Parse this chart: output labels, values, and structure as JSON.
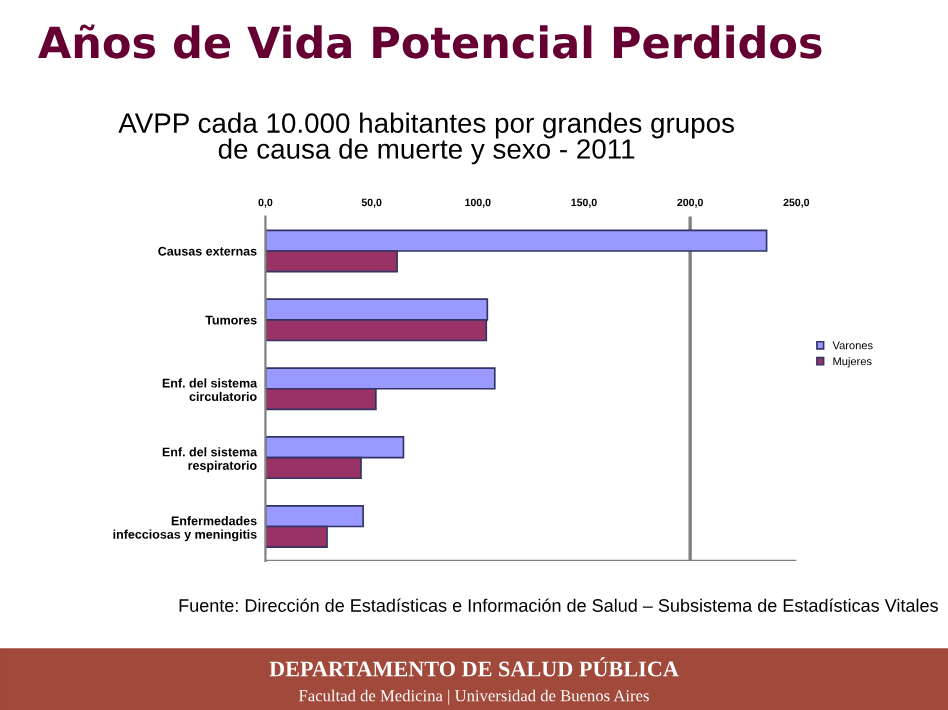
{
  "chart_data": {
    "type": "bar",
    "orientation": "horizontal",
    "title": "Años de Vida Potencial Perdidos",
    "subtitle": "AVPP cada 10.000 habitantes por grandes grupos\nde causa de muerte y sexo - 2011",
    "categories": [
      "Causas externas",
      "Tumores",
      "Enf. del sistema\ncirculatorio",
      "Enf. del sistema\nrespiratorio",
      "Enfermedades\ninfecciosas y meningitis"
    ],
    "series": [
      {
        "name": "Varones",
        "color": "#9999ff",
        "values": [
          236,
          104.5,
          108,
          65,
          46
        ]
      },
      {
        "name": "Mujeres",
        "color": "#993366",
        "values": [
          62,
          104,
          52,
          45,
          29
        ]
      }
    ],
    "xlim": [
      0,
      250
    ],
    "xticks": [
      {
        "value": 0,
        "label": "0,0"
      },
      {
        "value": 50,
        "label": "50,0"
      },
      {
        "value": 100,
        "label": "100,0"
      },
      {
        "value": 150,
        "label": "150,0"
      },
      {
        "value": 200,
        "label": "200,0"
      },
      {
        "value": 250,
        "label": "250,0"
      }
    ],
    "ref_lines": [
      {
        "axis": "x",
        "value": 200,
        "color": "#808080"
      }
    ],
    "legend": "right",
    "grid": false,
    "annotations": [
      "Fuente: Dirección de Estadísticas e Información de Salud – Subsistema de Estadísticas Vitales",
      "DEPARTAMENTO DE SALUD PÚBLICA",
      "Facultad de Medicina | Universidad de Buenos Aires"
    ]
  }
}
